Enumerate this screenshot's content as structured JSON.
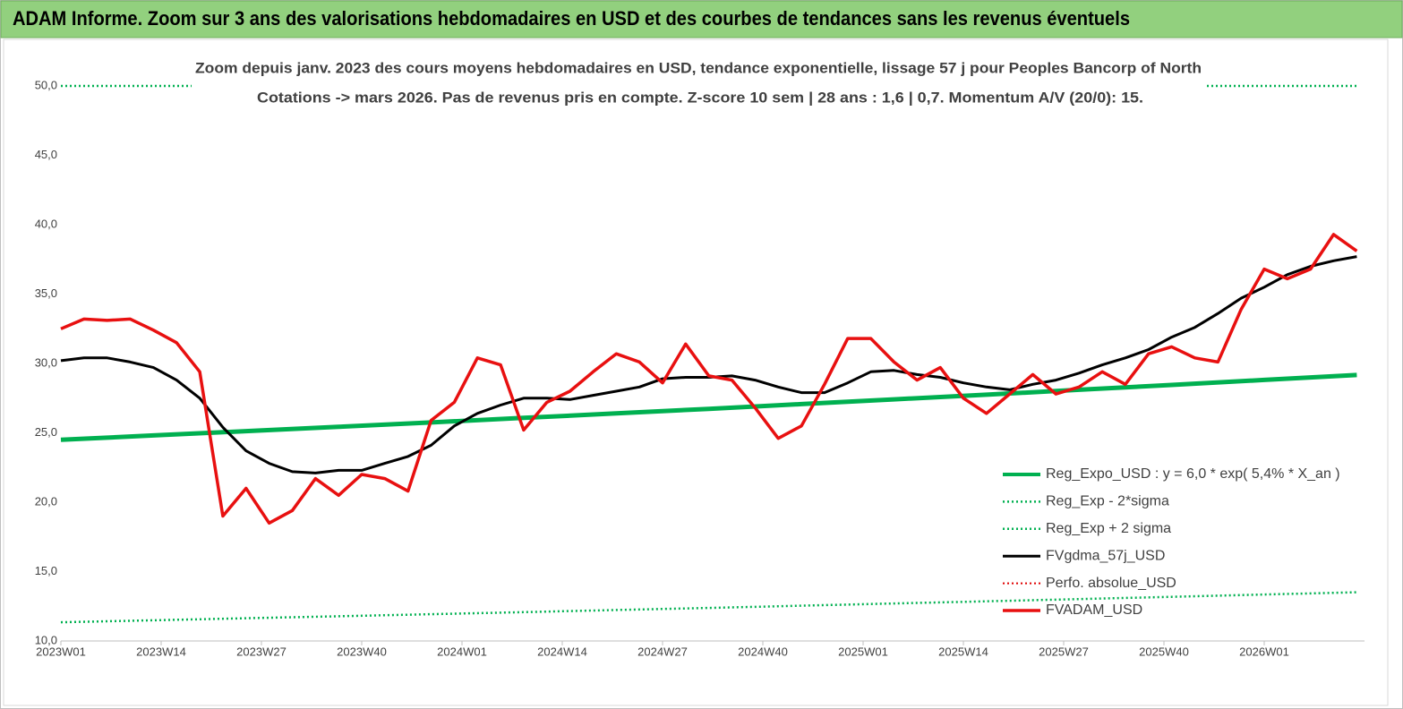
{
  "chart_data": {
    "type": "line",
    "title": "ADAM Informe. Zoom sur 3 ans des valorisations hebdomadaires en USD et des courbes de tendances sans les revenus éventuels",
    "subtitle": [
      "Zoom depuis janv. 2023 des cours moyens hebdomadaires en USD, tendance exponentielle, lissage 57 j pour Peoples Bancorp of North",
      "Cotations -> mars 2026. Pas de revenus pris en compte. Z-score 10 sem | 28 ans : 1,6 | 0,7. Momentum A/V (20/0): 15."
    ],
    "xlim": [
      0,
      169
    ],
    "xticks": [
      {
        "value": 0,
        "label": "2023W01"
      },
      {
        "value": 13,
        "label": "2023W14"
      },
      {
        "value": 26,
        "label": "2023W27"
      },
      {
        "value": 39,
        "label": "2023W40"
      },
      {
        "value": 52,
        "label": "2024W01"
      },
      {
        "value": 65,
        "label": "2024W14"
      },
      {
        "value": 78,
        "label": "2024W27"
      },
      {
        "value": 91,
        "label": "2024W40"
      },
      {
        "value": 104,
        "label": "2025W01"
      },
      {
        "value": 117,
        "label": "2025W14"
      },
      {
        "value": 130,
        "label": "2025W27"
      },
      {
        "value": 143,
        "label": "2025W40"
      },
      {
        "value": 156,
        "label": "2026W01"
      }
    ],
    "ylim": [
      10,
      50
    ],
    "yticks": [
      {
        "value": 10,
        "label": "10,0"
      },
      {
        "value": 15,
        "label": "15,0"
      },
      {
        "value": 20,
        "label": "20,0"
      },
      {
        "value": 25,
        "label": "25,0"
      },
      {
        "value": 30,
        "label": "30,0"
      },
      {
        "value": 35,
        "label": "35,0"
      },
      {
        "value": 40,
        "label": "40,0"
      },
      {
        "value": 45,
        "label": "45,0"
      },
      {
        "value": 50,
        "label": "50,0"
      }
    ],
    "grid": false,
    "legend_position": "right",
    "series": [
      {
        "name": "Reg_Expo_USD : y = 6,0 * exp( 5,4% *  X_an )",
        "color": "#00b050",
        "line_style": "solid",
        "x": [
          0,
          12,
          24,
          36,
          48,
          60,
          72,
          84,
          96,
          108,
          120,
          132,
          144,
          156,
          168
        ],
        "values": [
          24.5,
          24.81,
          25.12,
          25.43,
          25.75,
          26.08,
          26.4,
          26.73,
          27.07,
          27.41,
          27.75,
          28.1,
          28.45,
          28.81,
          29.17
        ]
      },
      {
        "name": "Reg_Exp - 2*sigma",
        "color": "#00b050",
        "line_style": "dotted",
        "x": [
          0,
          12,
          24,
          36,
          48,
          60,
          72,
          84,
          96,
          108,
          120,
          132,
          144,
          156,
          168
        ],
        "values": [
          11.35,
          11.49,
          11.64,
          11.78,
          11.93,
          12.08,
          12.23,
          12.38,
          12.54,
          12.7,
          12.86,
          13.02,
          13.18,
          13.35,
          13.51
        ]
      },
      {
        "name": "Reg_Exp + 2 sigma",
        "color": "#00b050",
        "line_style": "dotted",
        "x": [
          0,
          12,
          24,
          36,
          48,
          60,
          72,
          84,
          96,
          108,
          120,
          132,
          144,
          156,
          168
        ],
        "values": [
          50,
          50,
          50,
          50,
          50,
          50,
          50,
          50,
          50,
          50,
          50,
          50,
          50,
          50,
          50
        ]
      },
      {
        "name": "FVgdma_57j_USD",
        "color": "#000000",
        "line_style": "solid",
        "x": [
          0,
          3,
          6,
          9,
          12,
          15,
          18,
          21,
          24,
          27,
          30,
          33,
          36,
          39,
          42,
          45,
          48,
          51,
          54,
          57,
          60,
          63,
          66,
          69,
          72,
          75,
          78,
          81,
          84,
          87,
          90,
          93,
          96,
          99,
          102,
          105,
          108,
          111,
          114,
          117,
          120,
          123,
          126,
          129,
          132,
          135,
          138,
          141,
          144,
          147,
          150,
          153,
          156,
          159,
          162,
          165,
          168
        ],
        "values": [
          30.2,
          30.4,
          30.4,
          30.1,
          29.7,
          28.8,
          27.5,
          25.4,
          23.7,
          22.8,
          22.2,
          22.1,
          22.3,
          22.3,
          22.8,
          23.3,
          24.1,
          25.5,
          26.4,
          27.0,
          27.5,
          27.5,
          27.4,
          27.7,
          28.0,
          28.3,
          28.9,
          29.0,
          29.0,
          29.1,
          28.8,
          28.3,
          27.9,
          27.9,
          28.6,
          29.4,
          29.5,
          29.2,
          29.0,
          28.6,
          28.3,
          28.1,
          28.5,
          28.8,
          29.3,
          29.9,
          30.4,
          31.0,
          31.9,
          32.6,
          33.6,
          34.7,
          35.5,
          36.4,
          37.0,
          37.4,
          37.7
        ]
      },
      {
        "name": "Perfo. absolue_USD",
        "color": "#e00000",
        "line_style": "dotted"
      },
      {
        "name": "FVADAM_USD",
        "color": "#e81010",
        "line_style": "solid",
        "x": [
          0,
          3,
          6,
          9,
          12,
          15,
          18,
          21,
          24,
          27,
          30,
          33,
          36,
          39,
          42,
          45,
          48,
          51,
          54,
          57,
          60,
          63,
          66,
          69,
          72,
          75,
          78,
          81,
          84,
          87,
          90,
          93,
          96,
          99,
          102,
          105,
          108,
          111,
          114,
          117,
          120,
          123,
          126,
          129,
          132,
          135,
          138,
          141,
          144,
          147,
          150,
          153,
          156,
          159,
          162,
          165,
          168
        ],
        "values": [
          32.5,
          33.2,
          33.1,
          33.2,
          32.4,
          31.5,
          29.4,
          19.0,
          21.0,
          18.5,
          19.4,
          21.7,
          20.5,
          22.0,
          21.7,
          20.8,
          25.9,
          27.2,
          30.4,
          29.9,
          25.2,
          27.2,
          28.0,
          29.4,
          30.7,
          30.1,
          28.6,
          31.4,
          29.1,
          28.8,
          26.8,
          24.6,
          25.5,
          28.5,
          31.8,
          31.8,
          30.1,
          28.8,
          29.7,
          27.5,
          26.4,
          27.8,
          29.2,
          27.8,
          28.3,
          29.4,
          28.5,
          30.7,
          31.2,
          30.4,
          30.1,
          33.9,
          36.8,
          36.1,
          36.8,
          39.3,
          38.1
        ]
      }
    ]
  }
}
